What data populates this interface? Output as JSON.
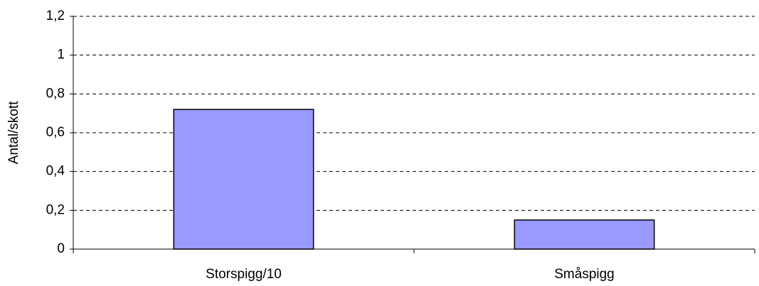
{
  "chart_data": {
    "type": "bar",
    "y_label": "Antal/skott",
    "categories": [
      "Storspigg/10",
      "Småspigg"
    ],
    "values": [
      0.72,
      0.15
    ],
    "color": "#9999ff",
    "ylim": [
      0,
      1.2
    ],
    "yticks": [
      0,
      {
        "value": 0.2,
        "label": "0,2"
      },
      {
        "value": 0.4,
        "label": "0,4"
      },
      {
        "value": 0.6,
        "label": "0,6"
      },
      {
        "value": 0.8,
        "label": "0,8"
      },
      1,
      {
        "value": 1.2,
        "label": "1,2"
      }
    ],
    "grid": true
  }
}
